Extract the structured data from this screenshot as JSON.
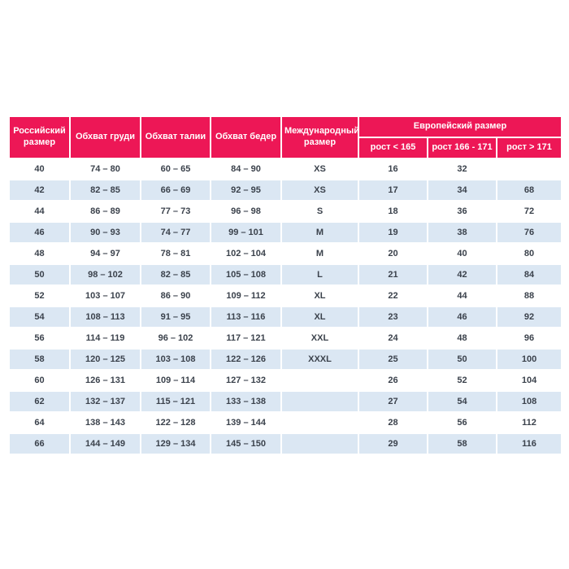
{
  "size_chart": {
    "columns": [
      {
        "key": "russian_size",
        "label": "Российский размер"
      },
      {
        "key": "chest",
        "label": "Обхват груди"
      },
      {
        "key": "waist",
        "label": "Обхват талии"
      },
      {
        "key": "hips",
        "label": "Обхват бедер"
      },
      {
        "key": "international_size",
        "label": "Международный размер"
      }
    ],
    "european_group": {
      "label": "Европейский размер",
      "columns": [
        "рост < 165",
        "рост 166 - 171",
        "рост > 171"
      ]
    },
    "rows": [
      [
        "40",
        "74 – 80",
        "60 – 65",
        "84 – 90",
        "XS",
        "16",
        "32",
        ""
      ],
      [
        "42",
        "82 – 85",
        "66 – 69",
        "92 – 95",
        "XS",
        "17",
        "34",
        "68"
      ],
      [
        "44",
        "86 – 89",
        "77 – 73",
        "96 – 98",
        "S",
        "18",
        "36",
        "72"
      ],
      [
        "46",
        "90 – 93",
        "74 – 77",
        "99 – 101",
        "M",
        "19",
        "38",
        "76"
      ],
      [
        "48",
        "94 – 97",
        "78 – 81",
        "102 – 104",
        "M",
        "20",
        "40",
        "80"
      ],
      [
        "50",
        "98 – 102",
        "82 – 85",
        "105 – 108",
        "L",
        "21",
        "42",
        "84"
      ],
      [
        "52",
        "103 – 107",
        "86 – 90",
        "109 – 112",
        "XL",
        "22",
        "44",
        "88"
      ],
      [
        "54",
        "108 – 113",
        "91 – 95",
        "113 – 116",
        "XL",
        "23",
        "46",
        "92"
      ],
      [
        "56",
        "114 – 119",
        "96 – 102",
        "117 – 121",
        "XXL",
        "24",
        "48",
        "96"
      ],
      [
        "58",
        "120 – 125",
        "103 – 108",
        "122 – 126",
        "XXXL",
        "25",
        "50",
        "100"
      ],
      [
        "60",
        "126 – 131",
        "109 – 114",
        "127 – 132",
        "",
        "26",
        "52",
        "104"
      ],
      [
        "62",
        "132 – 137",
        "115 – 121",
        "133 – 138",
        "",
        "27",
        "54",
        "108"
      ],
      [
        "64",
        "138 – 143",
        "122 – 128",
        "139 – 144",
        "",
        "28",
        "56",
        "112"
      ],
      [
        "66",
        "144 – 149",
        "129 – 134",
        "145 – 150",
        "",
        "29",
        "58",
        "116"
      ]
    ],
    "colors": {
      "header_bg": "#ed1756",
      "header_text": "#ffffff",
      "row_bg": "#ffffff",
      "row_alt_bg": "#dbe7f3",
      "cell_text": "#3b424c",
      "grid_line": "#ffffff"
    }
  }
}
